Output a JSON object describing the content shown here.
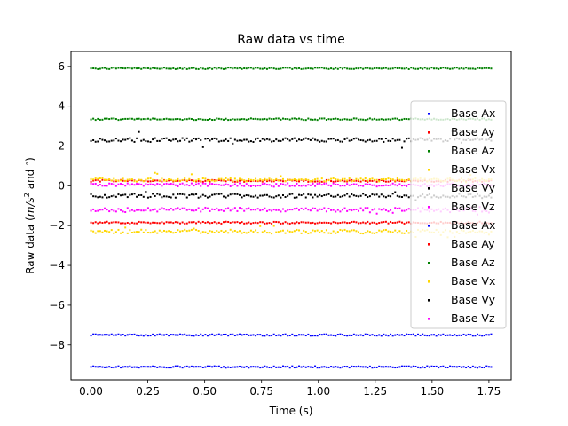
{
  "chart_data": {
    "type": "scatter",
    "title": "Raw data vs time",
    "xlabel": "Time (s)",
    "ylabel_prefix": "Raw data (",
    "ylabel_math": "m/s",
    "ylabel_sup": "2",
    "ylabel_middle": " and ",
    "ylabel_deg": "∘",
    "ylabel_suffix": ")",
    "xlim": [
      -0.088,
      1.848
    ],
    "ylim": [
      -9.75,
      6.75
    ],
    "xticks": [
      0.0,
      0.25,
      0.5,
      0.75,
      1.0,
      1.25,
      1.5,
      1.75
    ],
    "xtick_labels": [
      "0.00",
      "0.25",
      "0.50",
      "0.75",
      "1.00",
      "1.25",
      "1.50",
      "1.75"
    ],
    "yticks": [
      -8,
      -6,
      -4,
      -2,
      0,
      2,
      4,
      6
    ],
    "ytick_labels": [
      "−8",
      "−6",
      "−4",
      "−2",
      "0",
      "2",
      "4",
      "6"
    ],
    "x_range": [
      0.0,
      1.76
    ],
    "legend_placement": "center-right",
    "series": [
      {
        "name": "Base Ax",
        "color": "#0000ff",
        "mean": -9.1,
        "noise": 0.04,
        "spikes": 0
      },
      {
        "name": "Base Ay",
        "color": "#ff0000",
        "mean": 0.25,
        "noise": 0.05,
        "spikes": 0
      },
      {
        "name": "Base Az",
        "color": "#008000",
        "mean": 5.9,
        "noise": 0.04,
        "spikes": 0
      },
      {
        "name": "Base Vx",
        "color": "#ffd700",
        "mean": 0.3,
        "noise": 0.08,
        "spikes": 0.3
      },
      {
        "name": "Base Vy",
        "color": "#000000",
        "mean": 2.3,
        "noise": 0.1,
        "spikes": 0.5
      },
      {
        "name": "Base Vz",
        "color": "#ff00ff",
        "mean": 0.05,
        "noise": 0.08,
        "spikes": 0.1
      },
      {
        "name": "Base Ax",
        "color": "#0000ff",
        "mean": -7.5,
        "noise": 0.04,
        "spikes": 0
      },
      {
        "name": "Base Ay",
        "color": "#ff0000",
        "mean": -1.85,
        "noise": 0.05,
        "spikes": 0
      },
      {
        "name": "Base Az",
        "color": "#008000",
        "mean": 3.35,
        "noise": 0.04,
        "spikes": 0
      },
      {
        "name": "Base Vx",
        "color": "#ffd700",
        "mean": -2.3,
        "noise": 0.1,
        "spikes": 0.3
      },
      {
        "name": "Base Vy",
        "color": "#000000",
        "mean": -0.5,
        "noise": 0.1,
        "spikes": 0.2
      },
      {
        "name": "Base Vz",
        "color": "#ff00ff",
        "mean": -1.2,
        "noise": 0.1,
        "spikes": 0.2
      }
    ]
  }
}
